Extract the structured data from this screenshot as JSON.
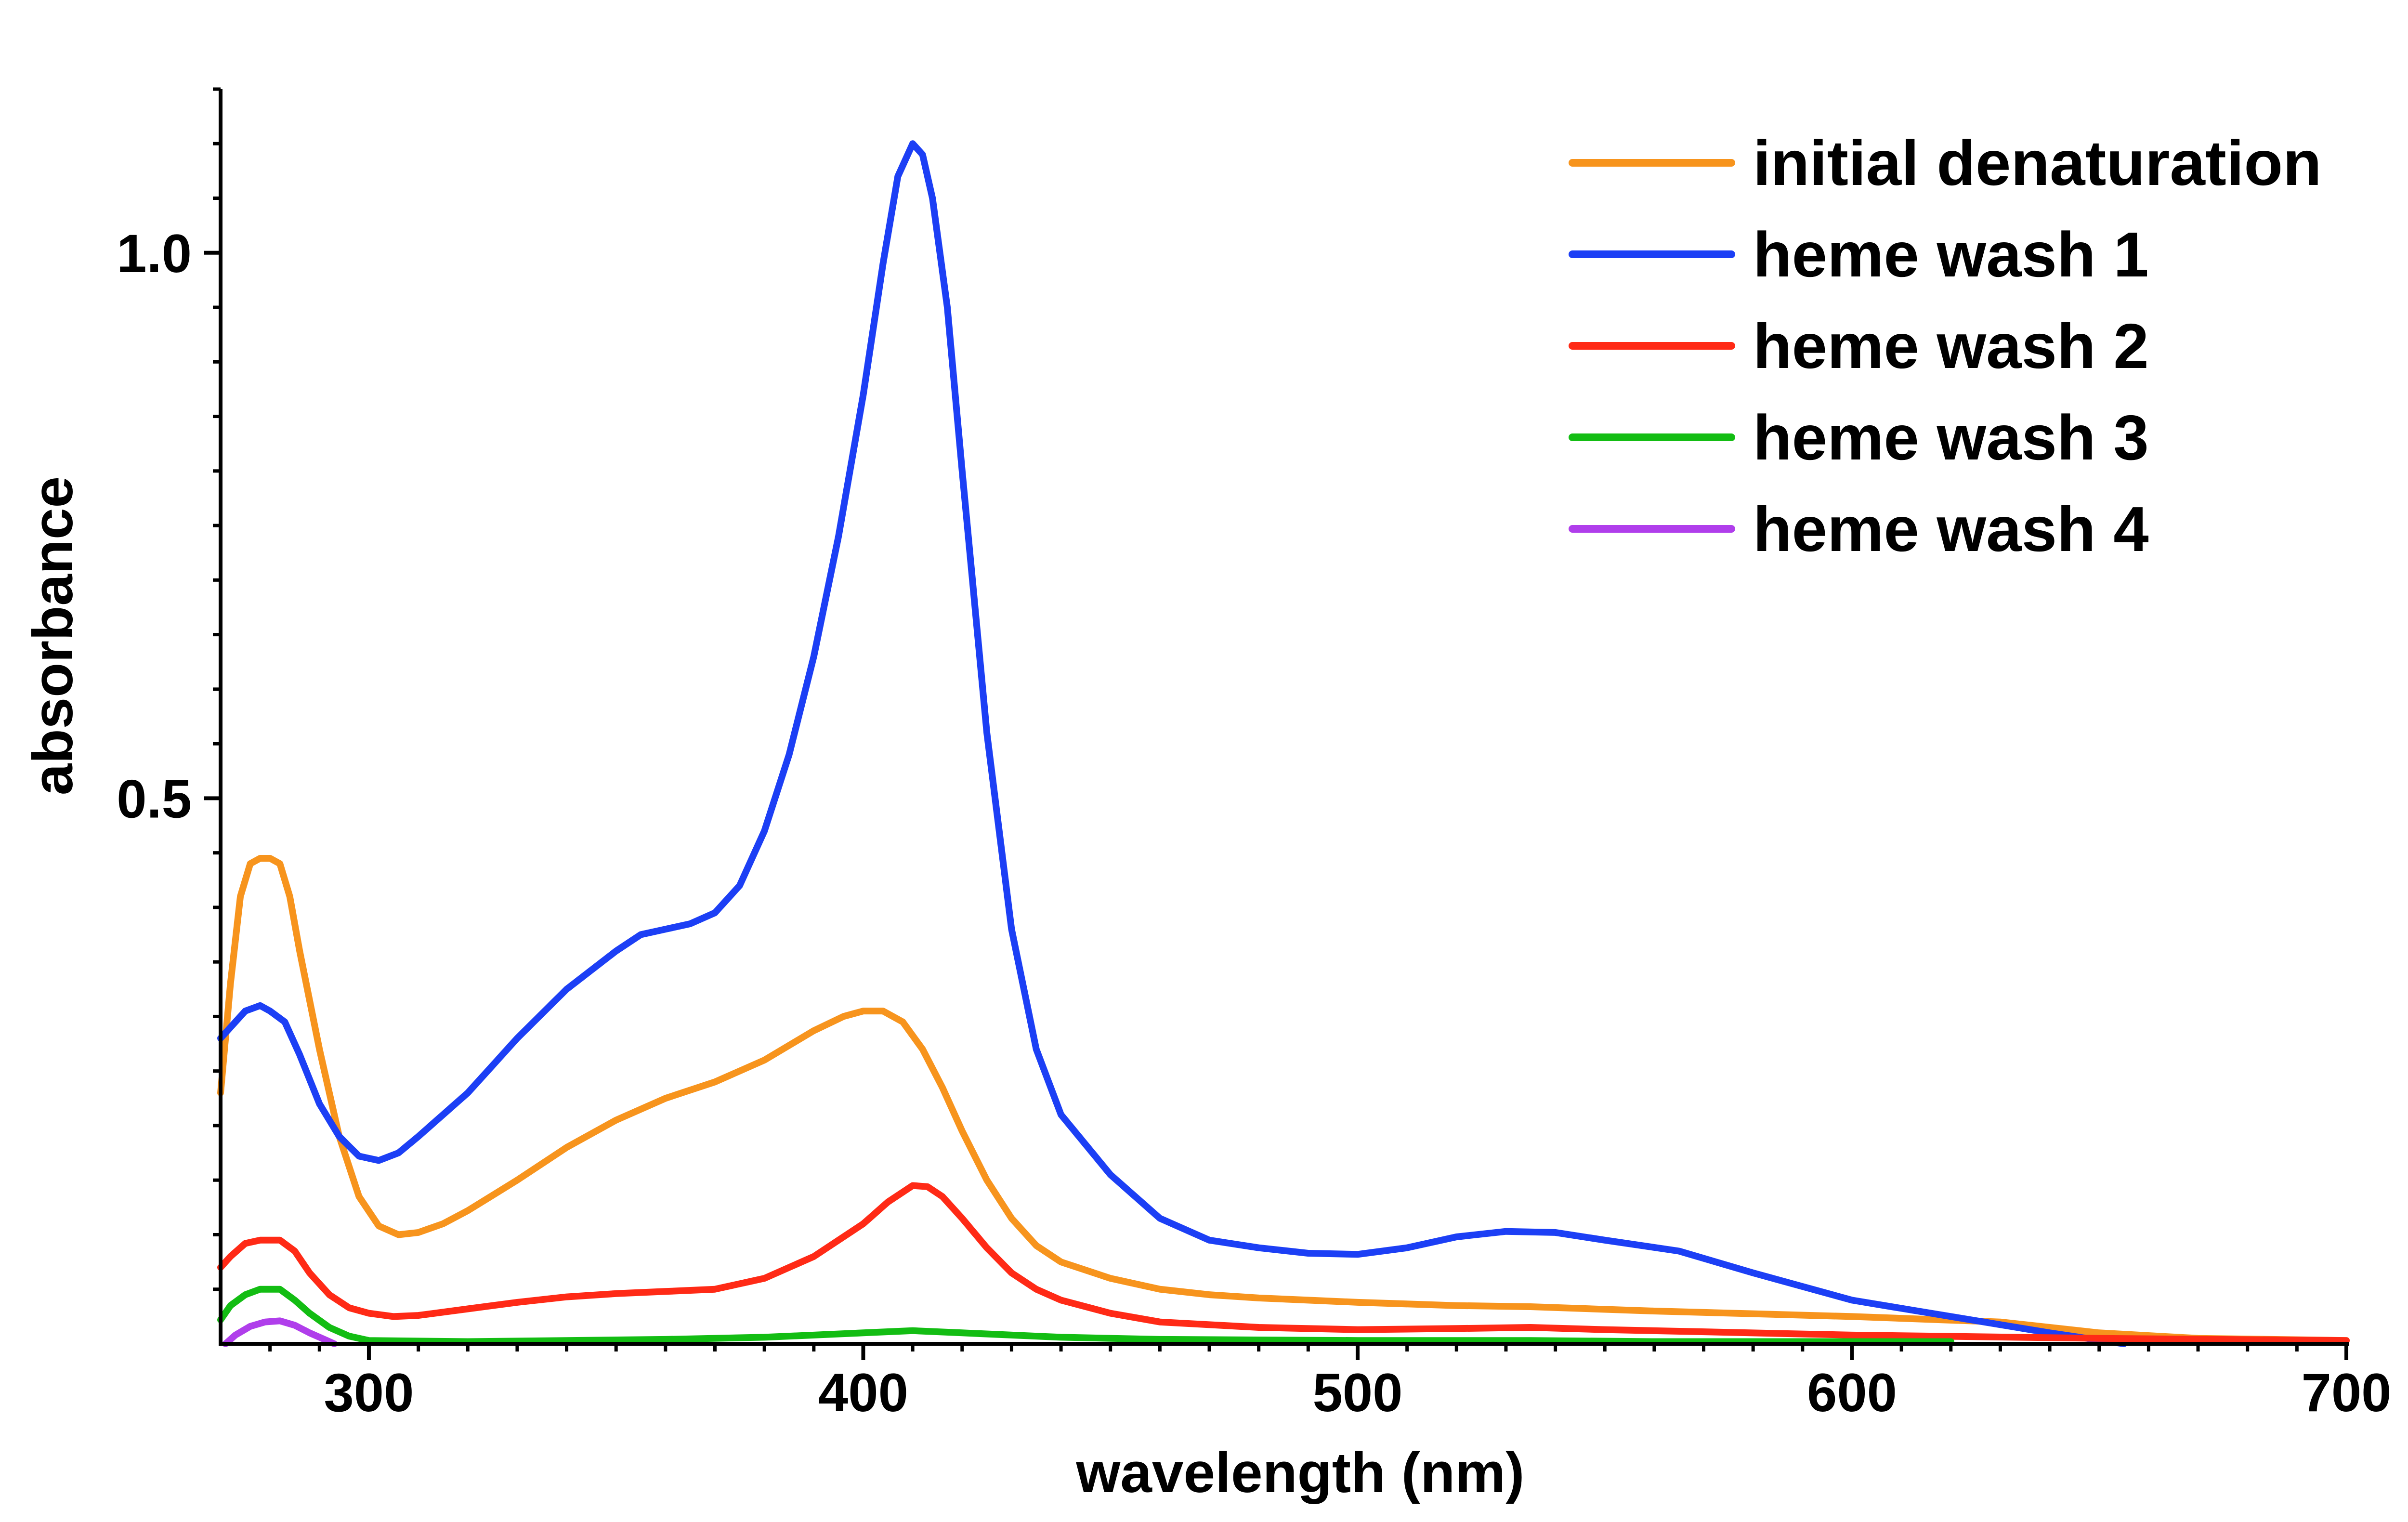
{
  "chart_data": {
    "type": "line",
    "xlabel": "wavelength (nm)",
    "ylabel": "absorbance",
    "xlim": [
      270,
      700
    ],
    "ylim": [
      0,
      1.15
    ],
    "x_ticks": [
      300,
      400,
      500,
      600,
      700
    ],
    "y_ticks": [
      0.5,
      1.0
    ],
    "x_tick_labels": [
      "300",
      "400",
      "500",
      "600",
      "700"
    ],
    "y_tick_labels": [
      "0.5",
      "1.0"
    ],
    "grid": false,
    "legend_position": "top-right",
    "series": [
      {
        "name": "initial denaturation",
        "color": "#F7941D",
        "points": [
          [
            270,
            0.23
          ],
          [
            272,
            0.33
          ],
          [
            274,
            0.41
          ],
          [
            276,
            0.44
          ],
          [
            278,
            0.445
          ],
          [
            280,
            0.445
          ],
          [
            282,
            0.44
          ],
          [
            284,
            0.41
          ],
          [
            286,
            0.36
          ],
          [
            290,
            0.27
          ],
          [
            294,
            0.19
          ],
          [
            298,
            0.135
          ],
          [
            302,
            0.108
          ],
          [
            306,
            0.1
          ],
          [
            310,
            0.102
          ],
          [
            315,
            0.11
          ],
          [
            320,
            0.122
          ],
          [
            330,
            0.15
          ],
          [
            340,
            0.18
          ],
          [
            350,
            0.205
          ],
          [
            360,
            0.225
          ],
          [
            370,
            0.24
          ],
          [
            380,
            0.26
          ],
          [
            390,
            0.287
          ],
          [
            396,
            0.3
          ],
          [
            400,
            0.305
          ],
          [
            404,
            0.305
          ],
          [
            408,
            0.295
          ],
          [
            412,
            0.27
          ],
          [
            416,
            0.235
          ],
          [
            420,
            0.195
          ],
          [
            425,
            0.15
          ],
          [
            430,
            0.115
          ],
          [
            435,
            0.09
          ],
          [
            440,
            0.075
          ],
          [
            450,
            0.06
          ],
          [
            460,
            0.05
          ],
          [
            470,
            0.045
          ],
          [
            480,
            0.042
          ],
          [
            490,
            0.04
          ],
          [
            500,
            0.038
          ],
          [
            520,
            0.035
          ],
          [
            535,
            0.034
          ],
          [
            560,
            0.03
          ],
          [
            600,
            0.025
          ],
          [
            630,
            0.02
          ],
          [
            650,
            0.01
          ],
          [
            670,
            0.005
          ],
          [
            700,
            0.003
          ]
        ]
      },
      {
        "name": "heme wash 1",
        "color": "#1C3FF5",
        "points": [
          [
            270,
            0.28
          ],
          [
            272,
            0.29
          ],
          [
            275,
            0.305
          ],
          [
            278,
            0.31
          ],
          [
            280,
            0.305
          ],
          [
            283,
            0.295
          ],
          [
            286,
            0.265
          ],
          [
            290,
            0.22
          ],
          [
            294,
            0.19
          ],
          [
            298,
            0.172
          ],
          [
            302,
            0.168
          ],
          [
            306,
            0.175
          ],
          [
            310,
            0.19
          ],
          [
            320,
            0.23
          ],
          [
            330,
            0.28
          ],
          [
            340,
            0.325
          ],
          [
            350,
            0.36
          ],
          [
            355,
            0.375
          ],
          [
            360,
            0.38
          ],
          [
            365,
            0.385
          ],
          [
            370,
            0.395
          ],
          [
            375,
            0.42
          ],
          [
            380,
            0.47
          ],
          [
            385,
            0.54
          ],
          [
            390,
            0.63
          ],
          [
            395,
            0.74
          ],
          [
            400,
            0.87
          ],
          [
            404,
            0.99
          ],
          [
            407,
            1.07
          ],
          [
            410,
            1.1
          ],
          [
            412,
            1.09
          ],
          [
            414,
            1.05
          ],
          [
            417,
            0.95
          ],
          [
            420,
            0.8
          ],
          [
            425,
            0.56
          ],
          [
            430,
            0.38
          ],
          [
            435,
            0.27
          ],
          [
            440,
            0.21
          ],
          [
            450,
            0.155
          ],
          [
            460,
            0.115
          ],
          [
            470,
            0.095
          ],
          [
            480,
            0.088
          ],
          [
            490,
            0.083
          ],
          [
            500,
            0.082
          ],
          [
            510,
            0.088
          ],
          [
            520,
            0.098
          ],
          [
            530,
            0.103
          ],
          [
            540,
            0.102
          ],
          [
            550,
            0.095
          ],
          [
            565,
            0.085
          ],
          [
            580,
            0.065
          ],
          [
            600,
            0.04
          ],
          [
            620,
            0.025
          ],
          [
            640,
            0.01
          ],
          [
            655,
            0.0
          ]
        ]
      },
      {
        "name": "heme wash 2",
        "color": "#FF2A16",
        "points": [
          [
            270,
            0.07
          ],
          [
            272,
            0.08
          ],
          [
            275,
            0.092
          ],
          [
            278,
            0.095
          ],
          [
            282,
            0.095
          ],
          [
            285,
            0.085
          ],
          [
            288,
            0.065
          ],
          [
            292,
            0.045
          ],
          [
            296,
            0.033
          ],
          [
            300,
            0.028
          ],
          [
            305,
            0.025
          ],
          [
            310,
            0.026
          ],
          [
            320,
            0.032
          ],
          [
            330,
            0.038
          ],
          [
            340,
            0.043
          ],
          [
            350,
            0.046
          ],
          [
            360,
            0.048
          ],
          [
            370,
            0.05
          ],
          [
            380,
            0.06
          ],
          [
            390,
            0.08
          ],
          [
            400,
            0.11
          ],
          [
            405,
            0.13
          ],
          [
            410,
            0.145
          ],
          [
            413,
            0.144
          ],
          [
            416,
            0.135
          ],
          [
            420,
            0.115
          ],
          [
            425,
            0.088
          ],
          [
            430,
            0.065
          ],
          [
            435,
            0.05
          ],
          [
            440,
            0.04
          ],
          [
            450,
            0.028
          ],
          [
            460,
            0.02
          ],
          [
            480,
            0.015
          ],
          [
            500,
            0.013
          ],
          [
            520,
            0.014
          ],
          [
            535,
            0.015
          ],
          [
            550,
            0.013
          ],
          [
            600,
            0.008
          ],
          [
            650,
            0.005
          ],
          [
            700,
            0.003
          ]
        ]
      },
      {
        "name": "heme wash 3",
        "color": "#13BD13",
        "points": [
          [
            270,
            0.022
          ],
          [
            272,
            0.035
          ],
          [
            275,
            0.045
          ],
          [
            278,
            0.05
          ],
          [
            282,
            0.05
          ],
          [
            285,
            0.04
          ],
          [
            288,
            0.028
          ],
          [
            292,
            0.015
          ],
          [
            296,
            0.007
          ],
          [
            300,
            0.003
          ],
          [
            320,
            0.002
          ],
          [
            340,
            0.003
          ],
          [
            360,
            0.004
          ],
          [
            380,
            0.006
          ],
          [
            400,
            0.01
          ],
          [
            410,
            0.012
          ],
          [
            420,
            0.01
          ],
          [
            440,
            0.006
          ],
          [
            460,
            0.004
          ],
          [
            500,
            0.003
          ],
          [
            535,
            0.003
          ],
          [
            560,
            0.002
          ],
          [
            620,
            0.002
          ]
        ]
      },
      {
        "name": "heme wash 4",
        "color": "#B03EEB",
        "points": [
          [
            271,
            0.0
          ],
          [
            273,
            0.008
          ],
          [
            276,
            0.016
          ],
          [
            279,
            0.02
          ],
          [
            282,
            0.021
          ],
          [
            285,
            0.017
          ],
          [
            288,
            0.01
          ],
          [
            291,
            0.004
          ],
          [
            293,
            0.0
          ]
        ]
      }
    ]
  }
}
